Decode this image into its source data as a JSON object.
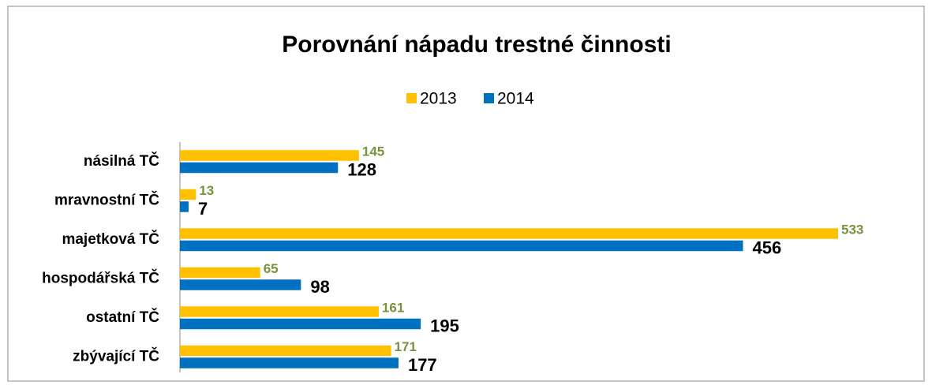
{
  "chart_data": {
    "type": "hbar",
    "title": "Porovnání nápadu trestné činnosti",
    "categories": [
      "násilná TČ",
      "mravnostní TČ",
      "majetková TČ",
      "hospodářská TČ",
      "ostatní TČ",
      "zbývající TČ"
    ],
    "series": [
      {
        "name": "2013",
        "color": "#FFC000",
        "label_color": "#77933C",
        "values": [
          145,
          13,
          533,
          65,
          161,
          171
        ]
      },
      {
        "name": "2014",
        "color": "#0070C0",
        "label_color": "#000000",
        "values": [
          128,
          7,
          456,
          98,
          195,
          177
        ]
      }
    ],
    "legend": "top"
  }
}
